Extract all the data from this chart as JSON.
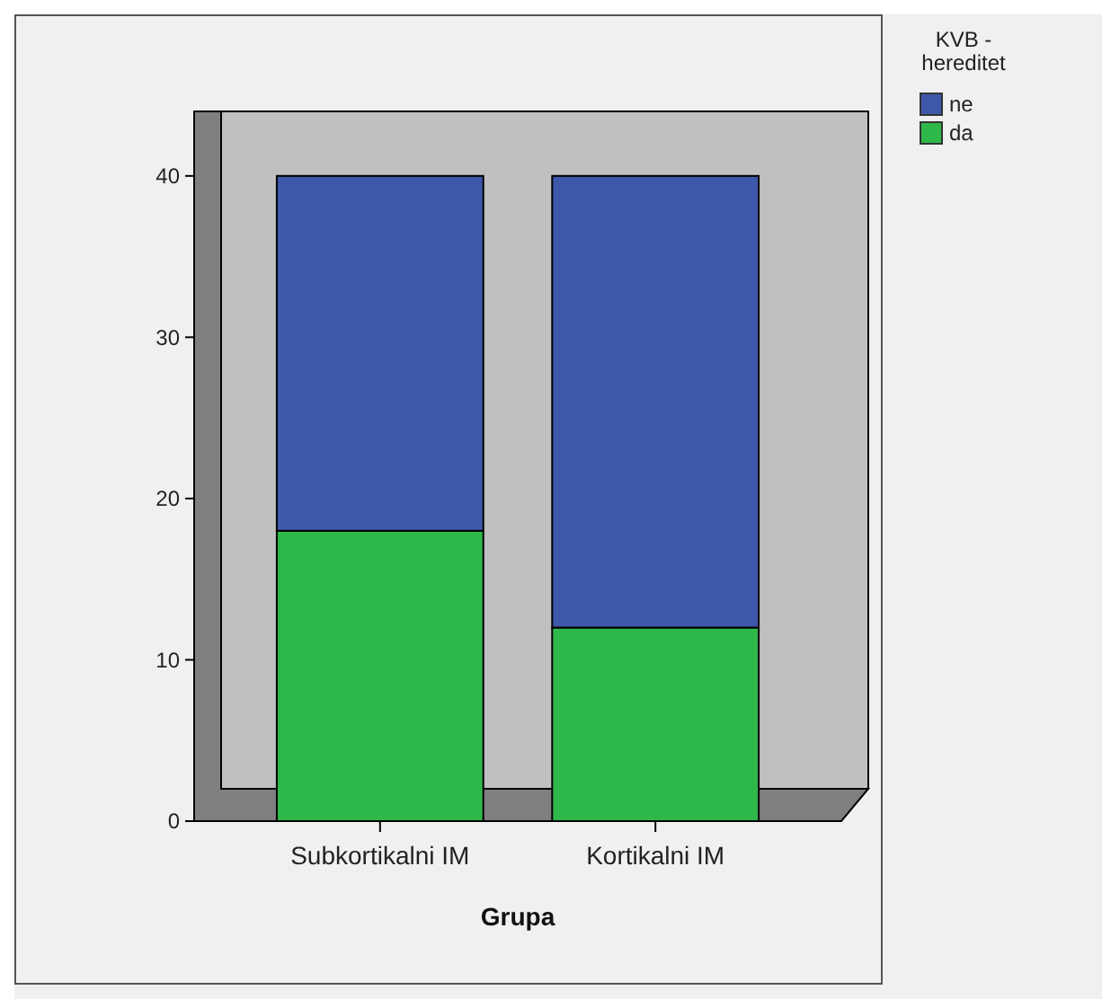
{
  "chart_data": {
    "type": "bar",
    "stacked": true,
    "xlabel": "Grupa",
    "legend_title": "KVB - hereditet",
    "legend": "right",
    "categories": [
      "Subkortikalni IM",
      "Kortikalni IM"
    ],
    "series": [
      {
        "name": "da",
        "color": "#2eb84a",
        "values": [
          18,
          12
        ]
      },
      {
        "name": "ne",
        "color": "#3d58ab",
        "values": [
          22,
          28
        ]
      }
    ],
    "ylim": [
      0,
      44
    ],
    "yticks": [
      0,
      10,
      20,
      30,
      40
    ],
    "grid": false
  }
}
